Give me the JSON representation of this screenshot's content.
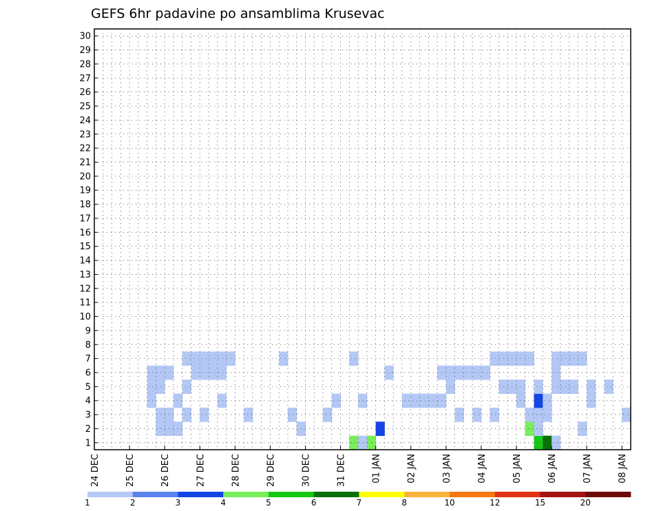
{
  "chart_data": {
    "type": "heatmap",
    "title": "GEFS 6hr padavine po ansamblima Krusevac",
    "xlabel": "",
    "ylabel": "",
    "x_tick_labels": [
      "24 DEC",
      "25 DEC",
      "26 DEC",
      "27 DEC",
      "28 DEC",
      "29 DEC",
      "30 DEC",
      "31 DEC",
      "01 JAN",
      "02 JAN",
      "03 JAN",
      "04 JAN",
      "05 JAN",
      "06 JAN",
      "07 JAN",
      "08 JAN"
    ],
    "y_tick_labels": [
      "1",
      "2",
      "3",
      "4",
      "5",
      "6",
      "7",
      "8",
      "9",
      "10",
      "11",
      "12",
      "13",
      "14",
      "15",
      "16",
      "17",
      "18",
      "19",
      "20",
      "21",
      "22",
      "23",
      "24",
      "25",
      "26",
      "27",
      "28",
      "29",
      "30"
    ],
    "n_steps": 61,
    "n_members": 30,
    "grid": true,
    "colorbar": {
      "labels": [
        "1",
        "2",
        "3",
        "4",
        "5",
        "6",
        "7",
        "8",
        "10",
        "12",
        "15",
        "20"
      ],
      "colors": [
        "#b4c8f5",
        "#5a82ee",
        "#1446e6",
        "#78ee5a",
        "#14c814",
        "#0a700a",
        "#ffff00",
        "#fab43c",
        "#f57814",
        "#e13214",
        "#a01414",
        "#6e0a0a"
      ]
    },
    "cells": [
      [
        1,
        29,
        4
      ],
      [
        1,
        30,
        1
      ],
      [
        1,
        31,
        4
      ],
      [
        1,
        50,
        5
      ],
      [
        1,
        51,
        6
      ],
      [
        1,
        52,
        1
      ],
      [
        2,
        7,
        1
      ],
      [
        2,
        8,
        1
      ],
      [
        2,
        9,
        1
      ],
      [
        2,
        23,
        1
      ],
      [
        2,
        32,
        3
      ],
      [
        2,
        49,
        4
      ],
      [
        2,
        50,
        1
      ],
      [
        2,
        55,
        1
      ],
      [
        3,
        7,
        1
      ],
      [
        3,
        8,
        1
      ],
      [
        3,
        10,
        1
      ],
      [
        3,
        12,
        1
      ],
      [
        3,
        17,
        1
      ],
      [
        3,
        22,
        1
      ],
      [
        3,
        26,
        1
      ],
      [
        3,
        41,
        1
      ],
      [
        3,
        43,
        1
      ],
      [
        3,
        45,
        1
      ],
      [
        3,
        49,
        1
      ],
      [
        3,
        50,
        1
      ],
      [
        3,
        51,
        1
      ],
      [
        3,
        60,
        1
      ],
      [
        4,
        6,
        1
      ],
      [
        4,
        9,
        1
      ],
      [
        4,
        14,
        1
      ],
      [
        4,
        27,
        1
      ],
      [
        4,
        30,
        1
      ],
      [
        4,
        35,
        1
      ],
      [
        4,
        36,
        1
      ],
      [
        4,
        37,
        1
      ],
      [
        4,
        38,
        1
      ],
      [
        4,
        39,
        1
      ],
      [
        4,
        48,
        1
      ],
      [
        4,
        50,
        3
      ],
      [
        4,
        51,
        1
      ],
      [
        4,
        56,
        1
      ],
      [
        5,
        6,
        1
      ],
      [
        5,
        7,
        1
      ],
      [
        5,
        10,
        1
      ],
      [
        5,
        40,
        1
      ],
      [
        5,
        46,
        1
      ],
      [
        5,
        47,
        1
      ],
      [
        5,
        48,
        1
      ],
      [
        5,
        50,
        1
      ],
      [
        5,
        52,
        1
      ],
      [
        5,
        53,
        1
      ],
      [
        5,
        54,
        1
      ],
      [
        5,
        56,
        1
      ],
      [
        5,
        58,
        1
      ],
      [
        6,
        6,
        1
      ],
      [
        6,
        7,
        1
      ],
      [
        6,
        8,
        1
      ],
      [
        6,
        11,
        1
      ],
      [
        6,
        12,
        1
      ],
      [
        6,
        13,
        1
      ],
      [
        6,
        14,
        1
      ],
      [
        6,
        33,
        1
      ],
      [
        6,
        39,
        1
      ],
      [
        6,
        40,
        1
      ],
      [
        6,
        41,
        1
      ],
      [
        6,
        42,
        1
      ],
      [
        6,
        43,
        1
      ],
      [
        6,
        44,
        1
      ],
      [
        6,
        52,
        1
      ],
      [
        7,
        10,
        1
      ],
      [
        7,
        11,
        1
      ],
      [
        7,
        12,
        1
      ],
      [
        7,
        13,
        1
      ],
      [
        7,
        14,
        1
      ],
      [
        7,
        15,
        1
      ],
      [
        7,
        21,
        1
      ],
      [
        7,
        29,
        1
      ],
      [
        7,
        45,
        1
      ],
      [
        7,
        46,
        1
      ],
      [
        7,
        47,
        1
      ],
      [
        7,
        48,
        1
      ],
      [
        7,
        49,
        1
      ],
      [
        7,
        52,
        1
      ],
      [
        7,
        53,
        1
      ],
      [
        7,
        54,
        1
      ],
      [
        7,
        55,
        1
      ]
    ]
  }
}
